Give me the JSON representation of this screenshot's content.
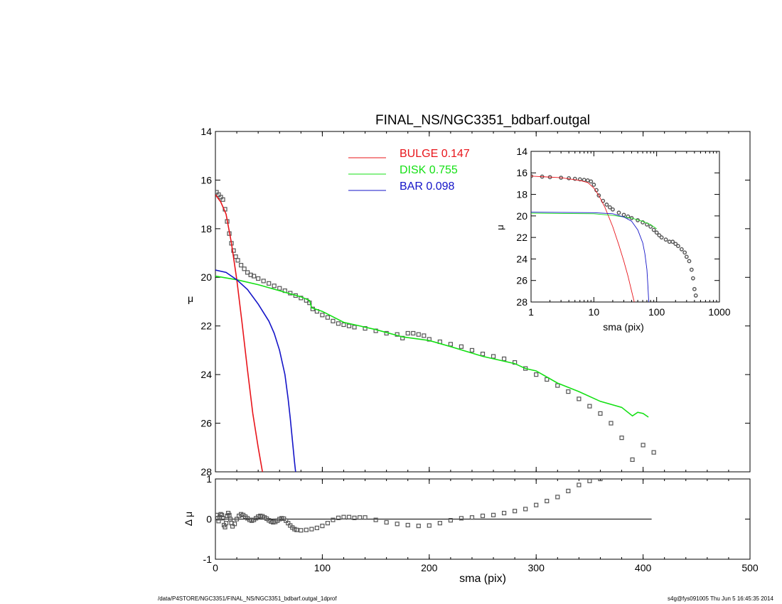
{
  "title": "FINAL_NS/NGC3351_bdbarf.outgal",
  "footer": {
    "path": "/data/P4STORE/NGC3351/FINAL_NS/NGC3351_bdbarf.outgal_1dprof",
    "stamp": "s4g@fys091005  Thu Jun  5 16:45:35 2014"
  },
  "colors": {
    "bulge": "#e8141a",
    "disk": "#14e014",
    "bar": "#1414c8",
    "data": "#555555",
    "axis": "#000000"
  },
  "chart_data": [
    {
      "id": "main",
      "type": "line",
      "title": "FINAL_NS/NGC3351_bdbarf.outgal",
      "xlabel": "sma (pix)",
      "ylabel": "μ",
      "xlim": [
        0,
        500
      ],
      "ylim": [
        28,
        14
      ],
      "xticks": [
        0,
        100,
        200,
        300,
        400,
        500
      ],
      "yticks": [
        14,
        16,
        18,
        20,
        22,
        24,
        26,
        28
      ],
      "legend": [
        {
          "label": "BULGE",
          "value": "0.147",
          "color": "#e8141a"
        },
        {
          "label": "DISK",
          "value": "0.755",
          "color": "#14e014"
        },
        {
          "label": "BAR",
          "value": "0.098",
          "color": "#1414c8"
        }
      ],
      "legend_position": "top-center",
      "series": [
        {
          "key": "bulge",
          "color": "#e8141a",
          "x": [
            0,
            5,
            10,
            15,
            20,
            25,
            30,
            35,
            40,
            44
          ],
          "y": [
            16.6,
            16.9,
            17.4,
            18.6,
            20.1,
            21.9,
            23.8,
            25.6,
            27.0,
            28.0
          ]
        },
        {
          "key": "disk",
          "color": "#14e014",
          "x": [
            0,
            20,
            40,
            60,
            80,
            88,
            90,
            100,
            120,
            150,
            175,
            200,
            220,
            250,
            280,
            290,
            300,
            320,
            340,
            360,
            380,
            390,
            395,
            400,
            405
          ],
          "y": [
            19.95,
            20.1,
            20.3,
            20.55,
            20.8,
            20.95,
            21.25,
            21.4,
            21.85,
            22.15,
            22.45,
            22.6,
            22.85,
            23.25,
            23.55,
            23.75,
            23.85,
            24.35,
            24.7,
            25.1,
            25.35,
            25.7,
            25.55,
            25.6,
            25.75
          ]
        },
        {
          "key": "bar",
          "color": "#1414c8",
          "x": [
            0,
            10,
            20,
            30,
            40,
            50,
            55,
            60,
            65,
            68,
            70,
            72,
            74,
            75
          ],
          "y": [
            19.7,
            19.8,
            20.1,
            20.5,
            21.1,
            21.8,
            22.3,
            23.0,
            24.0,
            25.0,
            25.8,
            26.7,
            27.6,
            28.0
          ]
        }
      ],
      "data_points": {
        "x": [
          1,
          3,
          5,
          7,
          9,
          11,
          13,
          15,
          17,
          19,
          21,
          24,
          27,
          30,
          33,
          36,
          40,
          45,
          50,
          55,
          60,
          65,
          70,
          75,
          80,
          85,
          88,
          91,
          95,
          100,
          105,
          110,
          115,
          120,
          125,
          130,
          140,
          150,
          160,
          170,
          175,
          180,
          185,
          190,
          195,
          200,
          210,
          220,
          230,
          240,
          250,
          260,
          270,
          280,
          290,
          300,
          310,
          320,
          330,
          340,
          350,
          360,
          370,
          380,
          390,
          400,
          410
        ],
        "y": [
          16.5,
          16.6,
          16.7,
          16.8,
          17.2,
          17.7,
          18.2,
          18.6,
          18.9,
          19.15,
          19.3,
          19.5,
          19.65,
          19.8,
          19.9,
          19.95,
          20.05,
          20.15,
          20.25,
          20.35,
          20.45,
          20.55,
          20.65,
          20.75,
          20.85,
          20.95,
          21.05,
          21.3,
          21.4,
          21.55,
          21.65,
          21.8,
          21.9,
          21.95,
          22.0,
          22.05,
          22.1,
          22.2,
          22.3,
          22.35,
          22.5,
          22.3,
          22.3,
          22.35,
          22.4,
          22.55,
          22.65,
          22.75,
          22.85,
          23.0,
          23.15,
          23.25,
          23.35,
          23.5,
          23.75,
          24.0,
          24.2,
          24.45,
          24.7,
          25.0,
          25.3,
          25.6,
          26.0,
          26.6,
          27.5,
          26.9,
          27.2
        ]
      }
    },
    {
      "id": "residual",
      "type": "scatter",
      "xlabel": "sma (pix)",
      "ylabel": "Δ μ",
      "xlim": [
        0,
        500
      ],
      "ylim": [
        -1,
        1
      ],
      "xticks": [
        0,
        100,
        200,
        300,
        400,
        500
      ],
      "yticks": [
        -1,
        0,
        1
      ],
      "zero_line_xmax": 408,
      "data_points": {
        "x": [
          1,
          2,
          3,
          4,
          5,
          6,
          7,
          8,
          9,
          10,
          11,
          12,
          13,
          14,
          15,
          16,
          18,
          20,
          22,
          24,
          26,
          28,
          30,
          32,
          34,
          36,
          38,
          40,
          42,
          44,
          46,
          48,
          50,
          52,
          54,
          56,
          58,
          60,
          62,
          64,
          66,
          68,
          70,
          72,
          74,
          76,
          80,
          85,
          90,
          95,
          100,
          105,
          110,
          115,
          120,
          125,
          130,
          135,
          140,
          150,
          160,
          170,
          180,
          190,
          200,
          210,
          220,
          230,
          240,
          250,
          260,
          270,
          280,
          290,
          300,
          310,
          320,
          330,
          340,
          350,
          360
        ],
        "y": [
          0.1,
          0.02,
          -0.05,
          0.05,
          0.12,
          0.1,
          0.02,
          -0.15,
          -0.2,
          -0.1,
          0.08,
          0.15,
          0.1,
          0.0,
          -0.1,
          -0.18,
          -0.12,
          0.0,
          0.08,
          0.12,
          0.1,
          0.06,
          0.02,
          -0.02,
          -0.04,
          -0.02,
          0.02,
          0.06,
          0.08,
          0.07,
          0.04,
          0.01,
          -0.03,
          -0.06,
          -0.08,
          -0.07,
          -0.04,
          0.0,
          0.02,
          0.01,
          -0.04,
          -0.1,
          -0.16,
          -0.21,
          -0.25,
          -0.27,
          -0.28,
          -0.27,
          -0.25,
          -0.22,
          -0.17,
          -0.1,
          -0.02,
          0.03,
          0.05,
          0.05,
          0.03,
          0.04,
          0.04,
          -0.02,
          -0.08,
          -0.12,
          -0.15,
          -0.17,
          -0.16,
          -0.1,
          -0.03,
          0.02,
          0.04,
          0.08,
          0.1,
          0.15,
          0.2,
          0.25,
          0.35,
          0.45,
          0.55,
          0.7,
          0.85,
          0.95,
          1.0
        ]
      }
    },
    {
      "id": "inset",
      "type": "line",
      "xlabel": "sma (pix)",
      "ylabel": "μ",
      "xscale": "log",
      "xlim": [
        1,
        1000
      ],
      "ylim": [
        28,
        14
      ],
      "xticks": [
        1,
        10,
        100,
        1000
      ],
      "yticks": [
        14,
        16,
        18,
        20,
        22,
        24,
        26,
        28
      ],
      "series": [
        {
          "key": "bulge",
          "color": "#e8141a",
          "x": [
            1,
            3,
            6,
            8,
            10,
            12,
            15,
            20,
            25,
            30,
            35,
            40,
            44
          ],
          "y": [
            16.3,
            16.45,
            16.7,
            16.9,
            17.4,
            18.1,
            19.2,
            21.0,
            22.7,
            24.2,
            25.6,
            27.0,
            28.0
          ]
        },
        {
          "key": "disk",
          "color": "#14e014",
          "x": [
            1,
            10,
            20,
            40,
            60,
            80,
            100
          ],
          "y": [
            19.75,
            19.8,
            19.95,
            20.2,
            20.5,
            20.8,
            21.2
          ]
        },
        {
          "key": "bar",
          "color": "#1414c8",
          "x": [
            1,
            10,
            20,
            30,
            40,
            50,
            60,
            65,
            70,
            72,
            74,
            75
          ],
          "y": [
            19.65,
            19.7,
            19.8,
            20.1,
            20.5,
            21.3,
            22.5,
            23.5,
            25.0,
            26.2,
            27.4,
            28.0
          ]
        }
      ],
      "data_points": {
        "x": [
          1,
          1.5,
          2,
          3,
          4,
          5,
          6,
          7,
          8,
          9,
          10,
          11,
          12,
          14,
          16,
          18,
          20,
          25,
          30,
          35,
          40,
          50,
          60,
          70,
          80,
          90,
          100,
          110,
          120,
          140,
          160,
          180,
          200,
          220,
          250,
          280,
          300,
          330,
          360,
          380,
          400,
          420
        ],
        "y": [
          16.3,
          16.35,
          16.4,
          16.45,
          16.5,
          16.55,
          16.6,
          16.65,
          16.7,
          16.8,
          17.1,
          17.6,
          18.1,
          18.6,
          18.95,
          19.2,
          19.4,
          19.7,
          19.9,
          20.05,
          20.2,
          20.4,
          20.6,
          20.8,
          21.0,
          21.3,
          21.55,
          21.8,
          22.0,
          22.2,
          22.4,
          22.4,
          22.6,
          22.8,
          23.1,
          23.4,
          23.8,
          24.2,
          25.0,
          25.8,
          26.8,
          27.4
        ]
      }
    }
  ]
}
